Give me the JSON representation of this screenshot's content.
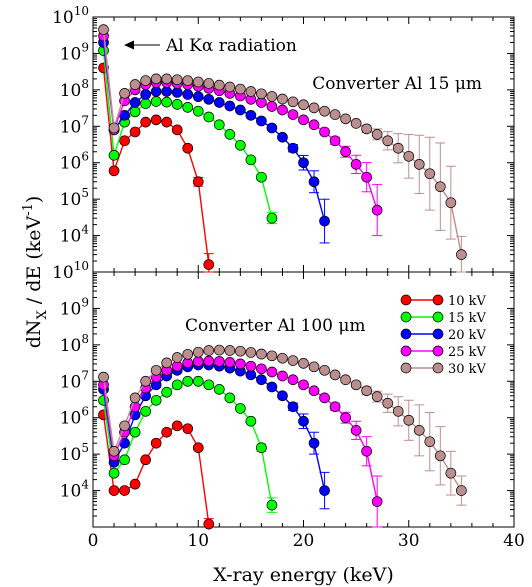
{
  "chart_data": [
    {
      "type": "scatter",
      "panel": "top",
      "annotation": "Converter Al 15 μm",
      "arrow_label": "Al  Kα  radiation",
      "xlim": [
        0,
        40
      ],
      "ylim_log10": [
        3,
        10
      ],
      "log_y": true,
      "xticks": [
        "0",
        "10",
        "20",
        "30",
        "40"
      ],
      "ytick_exponents": [
        "4",
        "5",
        "6",
        "7",
        "8",
        "9",
        "10"
      ],
      "ytick_base": "10",
      "series": [
        {
          "name": "10 kV",
          "color": "#ff0000",
          "x": [
            1,
            2,
            3,
            4,
            5,
            6,
            7,
            8,
            9,
            10,
            11
          ],
          "y": [
            400000000.0,
            600000.0,
            4000000.0,
            7000000.0,
            13000000.0,
            15000000.0,
            13000000.0,
            8000000.0,
            2500000.0,
            300000.0,
            1600.0
          ],
          "err": [
            0,
            0,
            0,
            0,
            0,
            0,
            0,
            0,
            0.05,
            0.12,
            0.3
          ]
        },
        {
          "name": "15 kV",
          "color": "#00ff00",
          "x": [
            1,
            2,
            3,
            4,
            5,
            6,
            7,
            8,
            9,
            10,
            11,
            12,
            13,
            14,
            15,
            16,
            17
          ],
          "y": [
            1200000000.0,
            1600000.0,
            13000000.0,
            25000000.0,
            42000000.0,
            48000000.0,
            46000000.0,
            40000000.0,
            33000000.0,
            26000000.0,
            18000000.0,
            11000000.0,
            6000000.0,
            3000000.0,
            1200000.0,
            400000.0,
            30000.0
          ],
          "err": [
            0,
            0,
            0,
            0,
            0,
            0,
            0,
            0,
            0,
            0,
            0,
            0,
            0,
            0,
            0.04,
            0.08,
            0.15
          ]
        },
        {
          "name": "20 kV",
          "color": "#0000ff",
          "x": [
            1,
            2,
            3,
            4,
            5,
            6,
            7,
            8,
            9,
            10,
            11,
            12,
            13,
            14,
            15,
            16,
            17,
            18,
            19,
            20,
            21,
            22
          ],
          "y": [
            2000000000.0,
            8000000.0,
            20000000.0,
            45000000.0,
            75000000.0,
            90000000.0,
            90000000.0,
            85000000.0,
            75000000.0,
            65000000.0,
            55000000.0,
            45000000.0,
            36000000.0,
            28000000.0,
            20000000.0,
            14000000.0,
            9000000.0,
            5000000.0,
            2500000.0,
            1000000.0,
            300000.0,
            25000.0
          ],
          "err": [
            0,
            0,
            0,
            0,
            0,
            0,
            0,
            0,
            0,
            0,
            0,
            0,
            0,
            0,
            0,
            0,
            0,
            0.05,
            0.1,
            0.2,
            0.3,
            0.6
          ]
        },
        {
          "name": "25 kV",
          "color": "#ff00ff",
          "x": [
            1,
            2,
            3,
            4,
            5,
            6,
            7,
            8,
            9,
            10,
            11,
            12,
            13,
            14,
            15,
            16,
            17,
            18,
            19,
            20,
            21,
            22,
            23,
            24,
            25,
            26,
            27
          ],
          "y": [
            3000000000.0,
            8000000.0,
            50000000.0,
            100000000.0,
            140000000.0,
            160000000.0,
            160000000.0,
            150000000.0,
            140000000.0,
            125000000.0,
            110000000.0,
            95000000.0,
            80000000.0,
            68000000.0,
            55000000.0,
            45000000.0,
            35000000.0,
            28000000.0,
            21000000.0,
            15000000.0,
            11000000.0,
            7000000.0,
            4000000.0,
            2000000.0,
            900000.0,
            400000.0,
            50000.0
          ],
          "err": [
            0,
            0,
            0,
            0,
            0,
            0,
            0,
            0,
            0,
            0,
            0,
            0,
            0,
            0,
            0,
            0,
            0,
            0,
            0,
            0,
            0,
            0.05,
            0.1,
            0.15,
            0.25,
            0.4,
            0.7
          ]
        },
        {
          "name": "30 kV",
          "color": "#bc8f8f",
          "x": [
            1,
            2,
            3,
            4,
            5,
            6,
            7,
            8,
            9,
            10,
            11,
            12,
            13,
            14,
            15,
            16,
            17,
            18,
            19,
            20,
            21,
            22,
            23,
            24,
            25,
            26,
            27,
            28,
            29,
            30,
            31,
            32,
            33,
            34,
            35
          ],
          "y": [
            4500000000.0,
            9000000.0,
            80000000.0,
            140000000.0,
            180000000.0,
            200000000.0,
            200000000.0,
            190000000.0,
            180000000.0,
            165000000.0,
            150000000.0,
            135000000.0,
            120000000.0,
            105000000.0,
            90000000.0,
            78000000.0,
            66000000.0,
            56000000.0,
            47000000.0,
            39000000.0,
            32000000.0,
            26000000.0,
            21000000.0,
            16000000.0,
            12000000.0,
            8500000.0,
            6000000.0,
            4000000.0,
            2500000.0,
            1500000.0,
            900000.0,
            500000.0,
            220000.0,
            80000.0,
            3000.0
          ],
          "err": [
            0,
            0,
            0,
            0,
            0,
            0,
            0,
            0,
            0,
            0,
            0,
            0,
            0,
            0,
            0,
            0,
            0,
            0,
            0,
            0,
            0,
            0,
            0,
            0,
            0.05,
            0.1,
            0.15,
            0.25,
            0.4,
            0.6,
            0.8,
            1.0,
            1.2,
            1.0,
            0.5
          ]
        }
      ]
    },
    {
      "type": "scatter",
      "panel": "bottom",
      "annotation": "Converter Al 100 μm",
      "xlim": [
        0,
        40
      ],
      "ylim_log10": [
        3,
        10
      ],
      "log_y": true,
      "xlabel": "X-ray energy (keV)",
      "ylabel": "dN_X / dE (keV^-1)",
      "legend_position": "top-right",
      "xticks": [
        "0",
        "10",
        "20",
        "30",
        "40"
      ],
      "ytick_exponents": [
        "4",
        "5",
        "6",
        "7",
        "8",
        "9",
        "10"
      ],
      "ytick_base": "10",
      "series": [
        {
          "name": "10 kV",
          "color": "#ff0000",
          "x": [
            1,
            2,
            3,
            4,
            5,
            6,
            7,
            8,
            9,
            10,
            11
          ],
          "y": [
            1200000.0,
            10000.0,
            10000.0,
            15000.0,
            70000.0,
            200000.0,
            400000.0,
            600000.0,
            500000.0,
            150000.0,
            1200.0
          ],
          "err": [
            0,
            0,
            0,
            0,
            0,
            0,
            0,
            0,
            0,
            0.05,
            0.15
          ]
        },
        {
          "name": "15 kV",
          "color": "#00ff00",
          "x": [
            1,
            2,
            3,
            4,
            5,
            6,
            7,
            8,
            9,
            10,
            11,
            12,
            13,
            14,
            15,
            16,
            17
          ],
          "y": [
            3000000.0,
            30000.0,
            70000.0,
            400000.0,
            1500000.0,
            3000000.0,
            5000000.0,
            8000000.0,
            10000000.0,
            10000000.0,
            8000000.0,
            6000000.0,
            3500000.0,
            1800000.0,
            800000.0,
            150000.0,
            4000.0
          ],
          "err": [
            0,
            0,
            0,
            0,
            0,
            0,
            0,
            0,
            0,
            0,
            0,
            0,
            0,
            0,
            0.05,
            0.1,
            0.2
          ]
        },
        {
          "name": "20 kV",
          "color": "#0000ff",
          "x": [
            1,
            2,
            3,
            4,
            5,
            6,
            7,
            8,
            9,
            10,
            11,
            12,
            13,
            14,
            15,
            16,
            17,
            18,
            19,
            20,
            21,
            22
          ],
          "y": [
            6000000.0,
            60000.0,
            200000.0,
            1200000.0,
            4000000.0,
            8000000.0,
            14000000.0,
            20000000.0,
            25000000.0,
            28000000.0,
            28000000.0,
            26000000.0,
            23000000.0,
            19000000.0,
            15000000.0,
            11000000.0,
            7000000.0,
            4000000.0,
            2000000.0,
            800000.0,
            200000.0,
            10000.0
          ],
          "err": [
            0,
            0,
            0,
            0,
            0,
            0,
            0,
            0,
            0,
            0,
            0,
            0,
            0,
            0,
            0,
            0,
            0,
            0.05,
            0.1,
            0.2,
            0.3,
            0.5
          ]
        },
        {
          "name": "25 kV",
          "color": "#ff00ff",
          "x": [
            1,
            2,
            3,
            4,
            5,
            6,
            7,
            8,
            9,
            10,
            11,
            12,
            13,
            14,
            15,
            16,
            17,
            18,
            19,
            20,
            21,
            22,
            23,
            24,
            25,
            26,
            27
          ],
          "y": [
            8000000.0,
            90000.0,
            400000.0,
            2000000.0,
            6500000.0,
            13000000.0,
            20000000.0,
            26000000.0,
            32000000.0,
            35000000.0,
            36000000.0,
            35000000.0,
            33000000.0,
            30000000.0,
            26000000.0,
            22000000.0,
            18000000.0,
            14000000.0,
            11000000.0,
            8000000.0,
            5500000.0,
            3500000.0,
            2000000.0,
            1000000.0,
            450000.0,
            120000.0,
            5000.0
          ],
          "err": [
            0,
            0,
            0,
            0,
            0,
            0,
            0,
            0,
            0,
            0,
            0,
            0,
            0,
            0,
            0,
            0,
            0,
            0,
            0,
            0,
            0,
            0.05,
            0.1,
            0.15,
            0.25,
            0.4,
            0.7
          ]
        },
        {
          "name": "30 kV",
          "color": "#bc8f8f",
          "x": [
            1,
            2,
            3,
            4,
            5,
            6,
            7,
            8,
            9,
            10,
            11,
            12,
            13,
            14,
            15,
            16,
            17,
            18,
            19,
            20,
            21,
            22,
            23,
            24,
            25,
            26,
            27,
            28,
            29,
            30,
            31,
            32,
            33,
            34,
            35
          ],
          "y": [
            13000000.0,
            120000.0,
            600000.0,
            3500000.0,
            10000000.0,
            20000000.0,
            32000000.0,
            45000000.0,
            55000000.0,
            63000000.0,
            70000000.0,
            72000000.0,
            70000000.0,
            67000000.0,
            62000000.0,
            56000000.0,
            50000000.0,
            43000000.0,
            37000000.0,
            31000000.0,
            25000000.0,
            20000000.0,
            15000000.0,
            11000000.0,
            8000000.0,
            5500000.0,
            3800000.0,
            2500000.0,
            1500000.0,
            850000.0,
            450000.0,
            220000.0,
            90000.0,
            30000.0,
            10000.0
          ],
          "err": [
            0,
            0,
            0,
            0,
            0,
            0,
            0,
            0,
            0,
            0,
            0,
            0,
            0,
            0,
            0,
            0,
            0,
            0,
            0,
            0,
            0,
            0,
            0,
            0,
            0.05,
            0.1,
            0.15,
            0.25,
            0.4,
            0.55,
            0.7,
            0.8,
            0.8,
            0.6,
            0.4
          ]
        }
      ]
    }
  ]
}
